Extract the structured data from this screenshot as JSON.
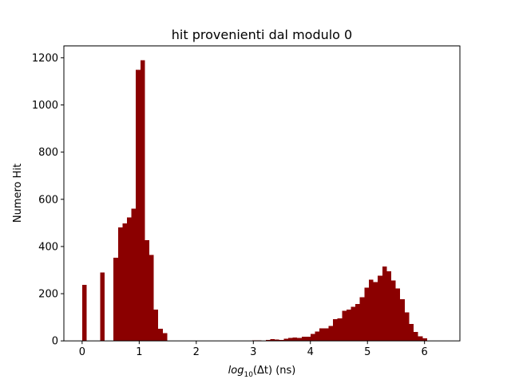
{
  "chart_data": {
    "type": "bar",
    "title": "hit provenienti dal modulo 0",
    "xlabel": {
      "base": "log",
      "sub": "10",
      "rest": "(Δt) (ns)"
    },
    "ylabel": "Numero Hit",
    "xlim": [
      -0.32,
      6.62
    ],
    "ylim": [
      0,
      1250
    ],
    "xticks": [
      0,
      1,
      2,
      3,
      4,
      5,
      6
    ],
    "yticks": [
      0,
      200,
      400,
      600,
      800,
      1000,
      1200
    ],
    "bar_color": "#8b0000",
    "bin_start": 0.0,
    "bin_width": 0.0785,
    "values": [
      238,
      0,
      0,
      0,
      289,
      0,
      0,
      352,
      481,
      498,
      524,
      560,
      1149,
      1189,
      427,
      365,
      133,
      52,
      32,
      0,
      0,
      0,
      0,
      0,
      0,
      0,
      0,
      0,
      0,
      0,
      0,
      0,
      0,
      0,
      0,
      0,
      0,
      0,
      2,
      3,
      0,
      4,
      8,
      6,
      4,
      9,
      12,
      14,
      12,
      17,
      17,
      30,
      40,
      53,
      53,
      64,
      92,
      95,
      127,
      132,
      144,
      157,
      185,
      226,
      260,
      250,
      277,
      316,
      295,
      256,
      223,
      176,
      121,
      72,
      38,
      20,
      10
    ]
  }
}
